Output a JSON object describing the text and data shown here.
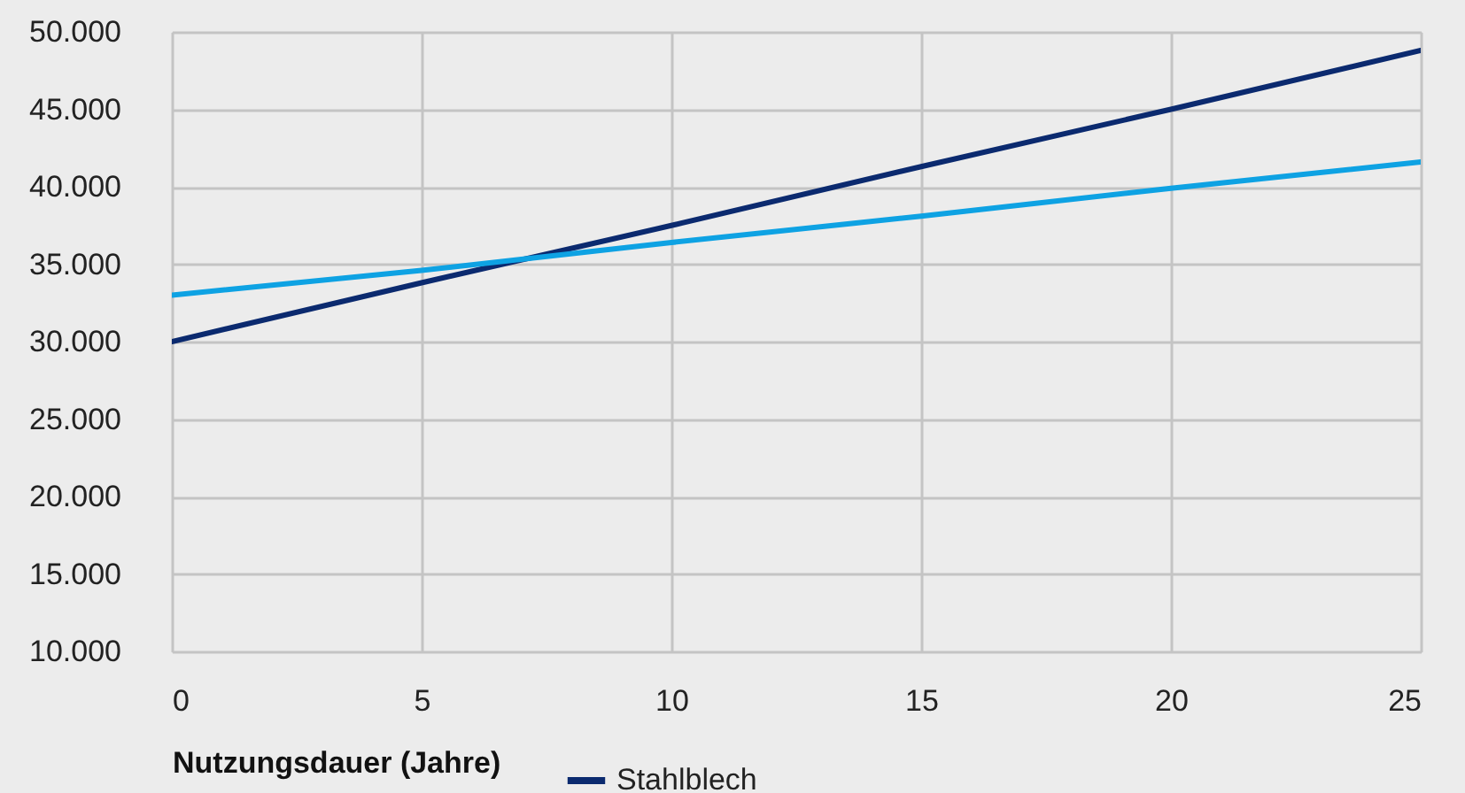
{
  "chart_data": {
    "type": "line",
    "xlabel": "Nutzungsdauer (Jahre)",
    "x": [
      0,
      5,
      10,
      15,
      20,
      25
    ],
    "series": [
      {
        "name": "Stahlblech",
        "color": "#0b2a6f",
        "values": [
          30000,
          33800,
          37500,
          41300,
          45000,
          48800
        ]
      },
      {
        "color": "#0ea2e3",
        "values": [
          33000,
          34600,
          36400,
          38100,
          39900,
          41600
        ]
      }
    ],
    "xlim": [
      0,
      25
    ],
    "xticks": [
      0,
      5,
      10,
      15,
      20,
      25
    ],
    "ylim": [
      10000,
      50000
    ],
    "yticks": [
      {
        "value": 10000,
        "label": "10.000"
      },
      {
        "value": 15000,
        "label": "15.000"
      },
      {
        "value": 20000,
        "label": "20.000"
      },
      {
        "value": 25000,
        "label": "25.000"
      },
      {
        "value": 30000,
        "label": "30.000"
      },
      {
        "value": 35000,
        "label": "35.000"
      },
      {
        "value": 40000,
        "label": "40.000"
      },
      {
        "value": 45000,
        "label": "45.000"
      },
      {
        "value": 50000,
        "label": "50.000"
      }
    ],
    "grid": true,
    "legend": "bottom",
    "line_style": "solid"
  }
}
